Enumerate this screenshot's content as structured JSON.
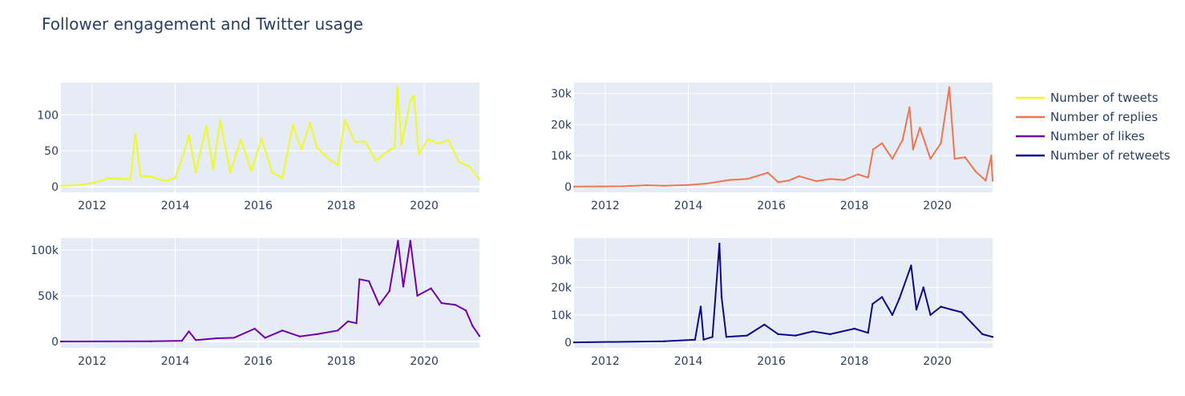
{
  "title": "Follower engagement and Twitter usage",
  "colors": {
    "plot_bg": "#E5ECF6",
    "grid": "#ffffff",
    "text": "#2a3f5f"
  },
  "chart_data": [
    {
      "type": "line",
      "series_name": "Number of tweets",
      "color": "#F0F921",
      "x_range": [
        "2011-04-01",
        "2021-05-01"
      ],
      "x_ticks": [
        "2012",
        "2014",
        "2016",
        "2018",
        "2020"
      ],
      "ylim": [
        -8,
        145
      ],
      "y_ticks": [
        0,
        50,
        100
      ],
      "y_tick_labels": [
        "0",
        "50",
        "100"
      ],
      "points": [
        [
          "2011-04-01",
          1
        ],
        [
          "2011-09-01",
          2
        ],
        [
          "2012-01-01",
          5
        ],
        [
          "2012-06-01",
          12
        ],
        [
          "2012-12-01",
          10
        ],
        [
          "2013-01-15",
          74
        ],
        [
          "2013-03-01",
          15
        ],
        [
          "2013-06-01",
          14
        ],
        [
          "2013-10-01",
          8
        ],
        [
          "2014-01-01",
          12
        ],
        [
          "2014-03-15",
          45
        ],
        [
          "2014-05-01",
          72
        ],
        [
          "2014-07-01",
          20
        ],
        [
          "2014-10-01",
          84
        ],
        [
          "2014-12-01",
          25
        ],
        [
          "2015-02-01",
          92
        ],
        [
          "2015-05-01",
          20
        ],
        [
          "2015-08-01",
          66
        ],
        [
          "2015-11-01",
          22
        ],
        [
          "2016-02-01",
          67
        ],
        [
          "2016-05-01",
          20
        ],
        [
          "2016-08-01",
          12
        ],
        [
          "2016-11-01",
          86
        ],
        [
          "2017-01-15",
          52
        ],
        [
          "2017-04-01",
          89
        ],
        [
          "2017-06-01",
          55
        ],
        [
          "2017-09-01",
          40
        ],
        [
          "2017-12-01",
          30
        ],
        [
          "2018-02-01",
          93
        ],
        [
          "2018-05-01",
          62
        ],
        [
          "2018-08-01",
          63
        ],
        [
          "2018-11-01",
          36
        ],
        [
          "2019-02-01",
          48
        ],
        [
          "2019-04-15",
          55
        ],
        [
          "2019-05-10",
          139
        ],
        [
          "2019-06-15",
          58
        ],
        [
          "2019-09-01",
          120
        ],
        [
          "2019-10-01",
          127
        ],
        [
          "2019-11-15",
          45
        ],
        [
          "2020-02-01",
          66
        ],
        [
          "2020-05-01",
          60
        ],
        [
          "2020-08-01",
          65
        ],
        [
          "2020-11-01",
          35
        ],
        [
          "2021-02-01",
          28
        ],
        [
          "2021-05-01",
          10
        ]
      ]
    },
    {
      "type": "line",
      "series_name": "Number of replies",
      "color": "#EF7550",
      "x_range": [
        "2011-04-01",
        "2021-05-01"
      ],
      "x_ticks": [
        "2012",
        "2014",
        "2016",
        "2018",
        "2020"
      ],
      "ylim": [
        -1800,
        33500
      ],
      "y_ticks": [
        0,
        10000,
        20000,
        30000
      ],
      "y_tick_labels": [
        "0",
        "10k",
        "20k",
        "30k"
      ],
      "points": [
        [
          "2011-04-01",
          50
        ],
        [
          "2012-06-01",
          150
        ],
        [
          "2013-01-01",
          500
        ],
        [
          "2013-06-01",
          300
        ],
        [
          "2014-01-01",
          600
        ],
        [
          "2014-06-01",
          1000
        ],
        [
          "2015-01-01",
          2200
        ],
        [
          "2015-06-01",
          2500
        ],
        [
          "2015-12-01",
          4500
        ],
        [
          "2016-03-01",
          1500
        ],
        [
          "2016-06-01",
          2000
        ],
        [
          "2016-09-01",
          3400
        ],
        [
          "2017-02-01",
          1800
        ],
        [
          "2017-06-01",
          2500
        ],
        [
          "2017-10-01",
          2200
        ],
        [
          "2018-02-01",
          4000
        ],
        [
          "2018-05-01",
          3000
        ],
        [
          "2018-06-15",
          12000
        ],
        [
          "2018-09-01",
          14000
        ],
        [
          "2018-12-01",
          9000
        ],
        [
          "2019-03-01",
          15000
        ],
        [
          "2019-05-01",
          25500
        ],
        [
          "2019-06-01",
          12000
        ],
        [
          "2019-08-01",
          19000
        ],
        [
          "2019-11-01",
          9000
        ],
        [
          "2020-02-01",
          14000
        ],
        [
          "2020-04-15",
          32000
        ],
        [
          "2020-06-01",
          9000
        ],
        [
          "2020-09-01",
          9500
        ],
        [
          "2020-12-01",
          5000
        ],
        [
          "2021-03-01",
          2000
        ],
        [
          "2021-04-20",
          10000
        ],
        [
          "2021-05-01",
          2000
        ]
      ]
    },
    {
      "type": "line",
      "series_name": "Number of likes",
      "color": "#7201A8",
      "x_range": [
        "2011-04-01",
        "2021-05-01"
      ],
      "x_ticks": [
        "2012",
        "2014",
        "2016",
        "2018",
        "2020"
      ],
      "ylim": [
        -7000,
        113000
      ],
      "y_ticks": [
        0,
        50000,
        100000
      ],
      "y_tick_labels": [
        "0",
        "50k",
        "100k"
      ],
      "points": [
        [
          "2011-04-01",
          0
        ],
        [
          "2013-06-01",
          200
        ],
        [
          "2014-03-01",
          800
        ],
        [
          "2014-05-01",
          11000
        ],
        [
          "2014-07-01",
          1500
        ],
        [
          "2015-01-01",
          3500
        ],
        [
          "2015-06-01",
          4000
        ],
        [
          "2015-12-01",
          14000
        ],
        [
          "2016-03-01",
          4000
        ],
        [
          "2016-08-01",
          12000
        ],
        [
          "2017-01-01",
          5500
        ],
        [
          "2017-06-01",
          8000
        ],
        [
          "2017-12-01",
          12000
        ],
        [
          "2018-03-01",
          22000
        ],
        [
          "2018-05-15",
          20000
        ],
        [
          "2018-06-10",
          68000
        ],
        [
          "2018-09-01",
          66000
        ],
        [
          "2018-12-01",
          40000
        ],
        [
          "2019-03-01",
          55000
        ],
        [
          "2019-05-15",
          110000
        ],
        [
          "2019-07-01",
          60000
        ],
        [
          "2019-09-01",
          110000
        ],
        [
          "2019-11-01",
          50000
        ],
        [
          "2020-03-01",
          58000
        ],
        [
          "2020-06-01",
          42000
        ],
        [
          "2020-10-01",
          40000
        ],
        [
          "2021-01-01",
          34000
        ],
        [
          "2021-03-01",
          17000
        ],
        [
          "2021-05-01",
          6000
        ]
      ]
    },
    {
      "type": "line",
      "series_name": "Number of retweets",
      "color": "#0D0887",
      "x_range": [
        "2011-04-01",
        "2021-05-01"
      ],
      "x_ticks": [
        "2012",
        "2014",
        "2016",
        "2018",
        "2020"
      ],
      "ylim": [
        -2000,
        38000
      ],
      "y_ticks": [
        0,
        10000,
        20000,
        30000
      ],
      "y_tick_labels": [
        "0",
        "10k",
        "20k",
        "30k"
      ],
      "points": [
        [
          "2011-04-01",
          0
        ],
        [
          "2013-06-01",
          400
        ],
        [
          "2014-03-01",
          1000
        ],
        [
          "2014-04-20",
          13000
        ],
        [
          "2014-05-15",
          1000
        ],
        [
          "2014-08-01",
          2000
        ],
        [
          "2014-10-01",
          36000
        ],
        [
          "2014-10-20",
          16500
        ],
        [
          "2014-12-01",
          2000
        ],
        [
          "2015-06-01",
          2500
        ],
        [
          "2015-11-01",
          6500
        ],
        [
          "2016-03-01",
          3000
        ],
        [
          "2016-08-01",
          2500
        ],
        [
          "2017-01-01",
          4000
        ],
        [
          "2017-06-01",
          3000
        ],
        [
          "2018-01-01",
          5000
        ],
        [
          "2018-05-01",
          3500
        ],
        [
          "2018-06-10",
          14000
        ],
        [
          "2018-09-01",
          16500
        ],
        [
          "2018-12-01",
          10000
        ],
        [
          "2019-02-01",
          16000
        ],
        [
          "2019-05-15",
          28000
        ],
        [
          "2019-07-01",
          12000
        ],
        [
          "2019-09-01",
          20000
        ],
        [
          "2019-11-01",
          10000
        ],
        [
          "2020-02-01",
          13000
        ],
        [
          "2020-05-01",
          12000
        ],
        [
          "2020-08-01",
          11000
        ],
        [
          "2020-11-01",
          7000
        ],
        [
          "2021-02-01",
          3000
        ],
        [
          "2021-05-01",
          2000
        ]
      ]
    }
  ]
}
